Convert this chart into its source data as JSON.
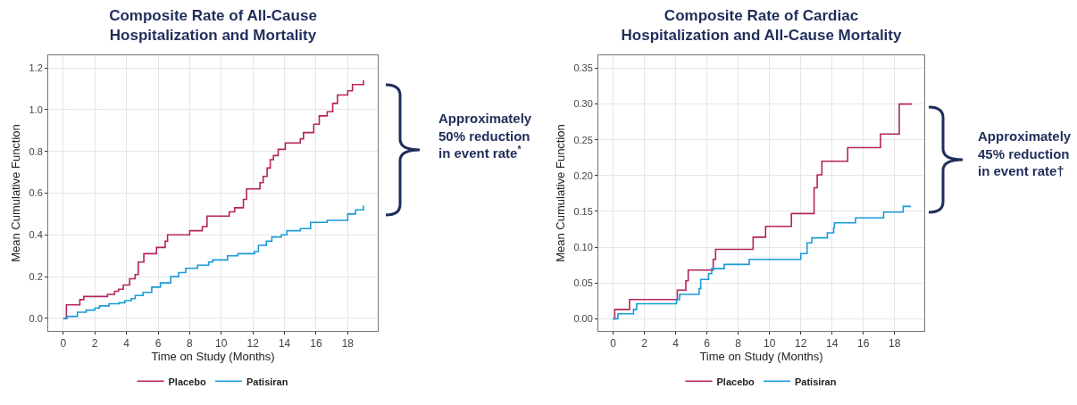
{
  "chart_data": [
    {
      "type": "step",
      "title": "Composite Rate of All-Cause\nHospitalization and Mortality",
      "xlabel": "Time on Study (Months)",
      "ylabel": "Mean Cumulative Function",
      "xlim": [
        -0.95,
        19.9
      ],
      "xticks": [
        0,
        2,
        4,
        6,
        8,
        10,
        12,
        14,
        16,
        18
      ],
      "ylim": [
        -0.06,
        1.26
      ],
      "yticks": [
        {
          "value": 0,
          "label": "0.0"
        },
        0.2,
        0.4,
        0.6,
        0.8,
        {
          "value": 1,
          "label": "1.0"
        },
        1.2
      ],
      "grid": true,
      "legend": "bottom",
      "annotations": [
        "Approximately\n50% reduction\nin event rate$^{*}$"
      ],
      "series": [
        {
          "name": "Placebo",
          "color": "#b5245e",
          "x": [
            0,
            0.2,
            1.05,
            1.3,
            2.8,
            3.25,
            3.5,
            3.8,
            4.2,
            4.55,
            4.75,
            5.1,
            5.9,
            6.45,
            6.6,
            8.0,
            8.8,
            9.1,
            10.5,
            10.85,
            11.4,
            11.6,
            12.45,
            12.65,
            12.9,
            13.1,
            13.3,
            13.6,
            14.05,
            15.0,
            15.2,
            15.85,
            16.2,
            16.7,
            17.05,
            17.35,
            18.0,
            18.3,
            19.0
          ],
          "values": [
            0,
            0.065,
            0.09,
            0.105,
            0.115,
            0.13,
            0.14,
            0.16,
            0.19,
            0.21,
            0.27,
            0.31,
            0.34,
            0.37,
            0.4,
            0.42,
            0.44,
            0.49,
            0.51,
            0.53,
            0.57,
            0.62,
            0.65,
            0.68,
            0.72,
            0.76,
            0.78,
            0.81,
            0.84,
            0.86,
            0.89,
            0.93,
            0.97,
            0.99,
            1.03,
            1.07,
            1.09,
            1.12,
            1.14
          ]
        },
        {
          "name": "Patisiran",
          "color": "#1a9bd7",
          "x": [
            0,
            0.25,
            0.9,
            1.45,
            2.0,
            2.3,
            2.9,
            3.55,
            3.9,
            4.3,
            4.55,
            5.05,
            5.6,
            6.15,
            6.8,
            7.3,
            7.75,
            8.5,
            9.2,
            9.45,
            10.4,
            11.05,
            12.1,
            12.35,
            12.85,
            13.2,
            13.8,
            14.15,
            15.0,
            15.65,
            16.7,
            18.0,
            18.5,
            19.0
          ],
          "values": [
            0,
            0.01,
            0.03,
            0.04,
            0.05,
            0.06,
            0.07,
            0.075,
            0.085,
            0.095,
            0.11,
            0.125,
            0.15,
            0.17,
            0.2,
            0.22,
            0.24,
            0.255,
            0.27,
            0.28,
            0.3,
            0.31,
            0.32,
            0.35,
            0.37,
            0.39,
            0.4,
            0.42,
            0.43,
            0.46,
            0.47,
            0.5,
            0.52,
            0.54
          ]
        }
      ]
    },
    {
      "type": "step",
      "title": "Composite Rate of Cardiac\nHospitalization and All-Cause Mortality",
      "xlabel": "Time on Study (Months)",
      "ylabel": "Mean Cumulative Function",
      "xlim": [
        -0.95,
        19.9
      ],
      "xticks": [
        0,
        2,
        4,
        6,
        8,
        10,
        12,
        14,
        16,
        18
      ],
      "ylim": [
        -0.017,
        0.368
      ],
      "yticks": [
        {
          "value": 0,
          "label": "0.00"
        },
        0.05,
        {
          "value": 0.1,
          "label": "0.10"
        },
        0.15,
        {
          "value": 0.2,
          "label": "0.20"
        },
        0.25,
        {
          "value": 0.3,
          "label": "0.30"
        },
        0.35
      ],
      "grid": true,
      "legend": "bottom",
      "annotations": [
        "Approximately\n45% reduction\nin event rate†"
      ],
      "series": [
        {
          "name": "Placebo",
          "color": "#b5245e",
          "x": [
            0,
            0.1,
            1.05,
            4.1,
            4.65,
            4.8,
            6.4,
            6.55,
            8.95,
            9.75,
            11.4,
            12.85,
            13.05,
            13.35,
            15.0,
            17.1,
            18.3,
            19.1
          ],
          "values": [
            0,
            0.013,
            0.027,
            0.04,
            0.053,
            0.068,
            0.083,
            0.097,
            0.114,
            0.129,
            0.147,
            0.183,
            0.201,
            0.22,
            0.239,
            0.258,
            0.3,
            0.3
          ]
        },
        {
          "name": "Patisiran",
          "color": "#1a9bd7",
          "x": [
            0,
            0.3,
            1.3,
            1.5,
            4.05,
            4.25,
            5.5,
            5.6,
            6.1,
            6.3,
            7.1,
            8.7,
            12.0,
            12.4,
            12.7,
            13.7,
            14.1,
            14.15,
            15.5,
            17.3,
            18.55,
            19.05
          ],
          "values": [
            0,
            0.007,
            0.013,
            0.021,
            0.027,
            0.034,
            0.042,
            0.055,
            0.063,
            0.07,
            0.076,
            0.083,
            0.091,
            0.106,
            0.113,
            0.12,
            0.127,
            0.134,
            0.141,
            0.149,
            0.157,
            0.157
          ]
        }
      ]
    }
  ]
}
